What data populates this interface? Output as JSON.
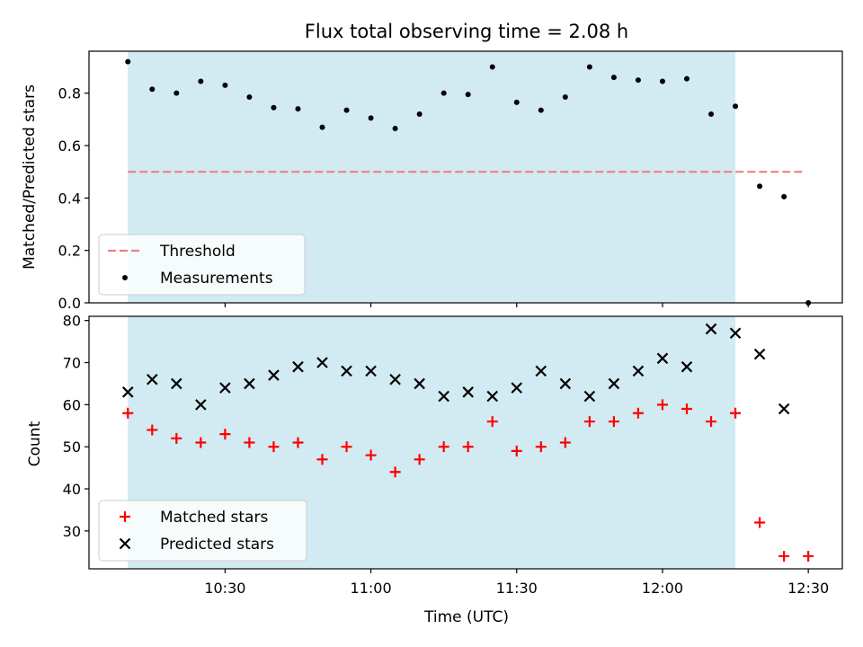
{
  "chart_data": [
    {
      "type": "scatter",
      "title": "Flux total observing time = 2.08 h",
      "xlabel": "",
      "ylabel": "Matched/Predicted stars",
      "ylim": [
        0,
        0.96
      ],
      "yticks": [
        "0.0",
        "0.2",
        "0.4",
        "0.6",
        "0.8"
      ],
      "shaded_span": [
        "10:10",
        "12:15"
      ],
      "shade_color": "#add8e6",
      "legend_position": "lower-left",
      "threshold": {
        "name": "Threshold",
        "value": 0.5,
        "x_range": [
          "10:10",
          "12:29"
        ],
        "color": "#f08080",
        "style": "dashed"
      },
      "series": [
        {
          "name": "Measurements",
          "marker": "dot",
          "color": "#000000",
          "points": [
            [
              "10:10",
              0.92
            ],
            [
              "10:15",
              0.815
            ],
            [
              "10:20",
              0.8
            ],
            [
              "10:25",
              0.845
            ],
            [
              "10:30",
              0.83
            ],
            [
              "10:35",
              0.785
            ],
            [
              "10:40",
              0.745
            ],
            [
              "10:45",
              0.74
            ],
            [
              "10:50",
              0.67
            ],
            [
              "10:55",
              0.735
            ],
            [
              "11:00",
              0.705
            ],
            [
              "11:05",
              0.665
            ],
            [
              "11:10",
              0.72
            ],
            [
              "11:15",
              0.8
            ],
            [
              "11:20",
              0.795
            ],
            [
              "11:25",
              0.9
            ],
            [
              "11:30",
              0.765
            ],
            [
              "11:35",
              0.735
            ],
            [
              "11:40",
              0.785
            ],
            [
              "11:45",
              0.9
            ],
            [
              "11:50",
              0.86
            ],
            [
              "11:55",
              0.85
            ],
            [
              "12:00",
              0.845
            ],
            [
              "12:05",
              0.855
            ],
            [
              "12:10",
              0.72
            ],
            [
              "12:15",
              0.75
            ],
            [
              "12:20",
              0.445
            ],
            [
              "12:25",
              0.405
            ],
            [
              "12:30",
              0.0
            ]
          ]
        }
      ]
    },
    {
      "type": "scatter",
      "title": "",
      "xlabel": "Time (UTC)",
      "ylabel": "Count",
      "ylim": [
        21,
        81
      ],
      "yticks": [
        "30",
        "40",
        "50",
        "60",
        "70",
        "80"
      ],
      "xlim": [
        "10:02",
        "12:37"
      ],
      "xticks": [
        "10:30",
        "11:00",
        "11:30",
        "12:00",
        "12:30"
      ],
      "shaded_span": [
        "10:10",
        "12:15"
      ],
      "shade_color": "#add8e6",
      "legend_position": "lower-left",
      "series": [
        {
          "name": "Matched stars",
          "marker": "plus",
          "color": "#ff0000",
          "points": [
            [
              "10:10",
              58
            ],
            [
              "10:15",
              54
            ],
            [
              "10:20",
              52
            ],
            [
              "10:25",
              51
            ],
            [
              "10:30",
              53
            ],
            [
              "10:35",
              51
            ],
            [
              "10:40",
              50
            ],
            [
              "10:45",
              51
            ],
            [
              "10:50",
              47
            ],
            [
              "10:55",
              50
            ],
            [
              "11:00",
              48
            ],
            [
              "11:05",
              44
            ],
            [
              "11:10",
              47
            ],
            [
              "11:15",
              50
            ],
            [
              "11:20",
              50
            ],
            [
              "11:25",
              56
            ],
            [
              "11:30",
              49
            ],
            [
              "11:35",
              50
            ],
            [
              "11:40",
              51
            ],
            [
              "11:45",
              56
            ],
            [
              "11:50",
              56
            ],
            [
              "11:55",
              58
            ],
            [
              "12:00",
              60
            ],
            [
              "12:05",
              59
            ],
            [
              "12:10",
              56
            ],
            [
              "12:15",
              58
            ],
            [
              "12:20",
              32
            ],
            [
              "12:25",
              24
            ],
            [
              "12:30",
              24
            ]
          ]
        },
        {
          "name": "Predicted stars",
          "marker": "x",
          "color": "#000000",
          "points": [
            [
              "10:10",
              63
            ],
            [
              "10:15",
              66
            ],
            [
              "10:20",
              65
            ],
            [
              "10:25",
              60
            ],
            [
              "10:30",
              64
            ],
            [
              "10:35",
              65
            ],
            [
              "10:40",
              67
            ],
            [
              "10:45",
              69
            ],
            [
              "10:50",
              70
            ],
            [
              "10:55",
              68
            ],
            [
              "11:00",
              68
            ],
            [
              "11:05",
              66
            ],
            [
              "11:10",
              65
            ],
            [
              "11:15",
              62
            ],
            [
              "11:20",
              63
            ],
            [
              "11:25",
              62
            ],
            [
              "11:30",
              64
            ],
            [
              "11:35",
              68
            ],
            [
              "11:40",
              65
            ],
            [
              "11:45",
              62
            ],
            [
              "11:50",
              65
            ],
            [
              "11:55",
              68
            ],
            [
              "12:00",
              71
            ],
            [
              "12:05",
              69
            ],
            [
              "12:10",
              78
            ],
            [
              "12:15",
              77
            ],
            [
              "12:20",
              72
            ],
            [
              "12:25",
              59
            ]
          ]
        }
      ]
    }
  ]
}
